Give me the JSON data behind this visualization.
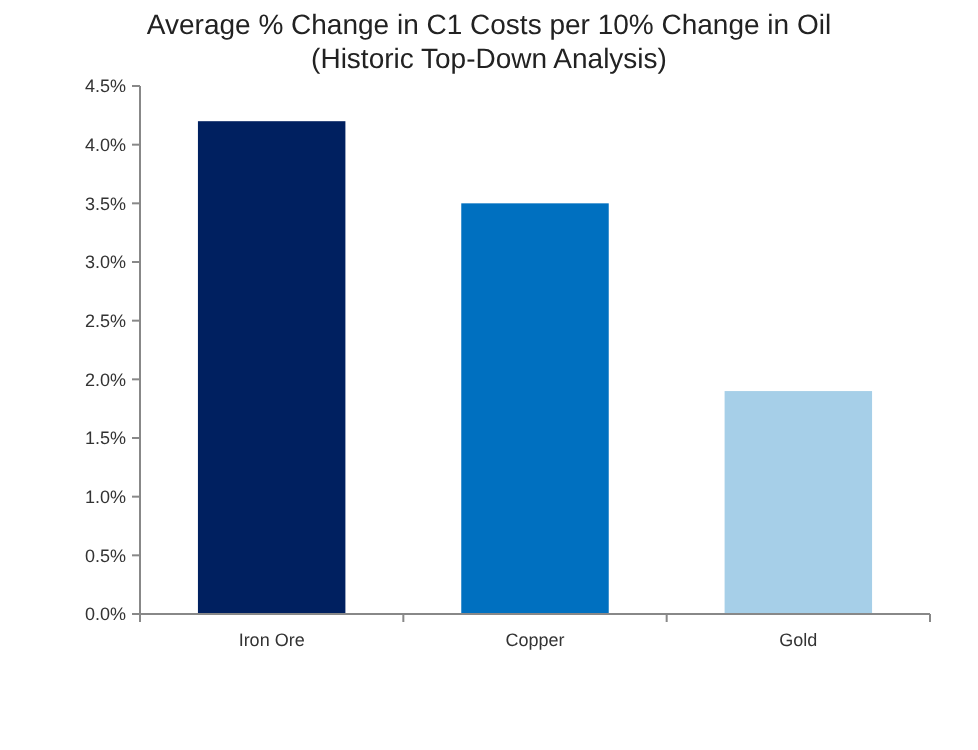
{
  "chart_data": {
    "type": "bar",
    "title": "Average % Change in C1 Costs per 10% Change in Oil",
    "subtitle": "(Historic Top-Down Analysis)",
    "categories": [
      "Iron Ore",
      "Copper",
      "Gold"
    ],
    "values": [
      4.2,
      3.5,
      1.9
    ],
    "colors": [
      "#002060",
      "#0070c0",
      "#a6cfe8"
    ],
    "ylim": [
      0,
      4.5
    ],
    "yticks": [
      {
        "value": 0,
        "label": "0.0%"
      },
      {
        "value": 0.5,
        "label": "0.5%"
      },
      {
        "value": 1,
        "label": "1.0%"
      },
      {
        "value": 1.5,
        "label": "1.5%"
      },
      {
        "value": 2,
        "label": "2.0%"
      },
      {
        "value": 2.5,
        "label": "2.5%"
      },
      {
        "value": 3,
        "label": "3.0%"
      },
      {
        "value": 3.5,
        "label": "3.5%"
      },
      {
        "value": 4,
        "label": "4.0%"
      },
      {
        "value": 4.5,
        "label": "4.5%"
      }
    ],
    "grid": false,
    "legend": false
  }
}
